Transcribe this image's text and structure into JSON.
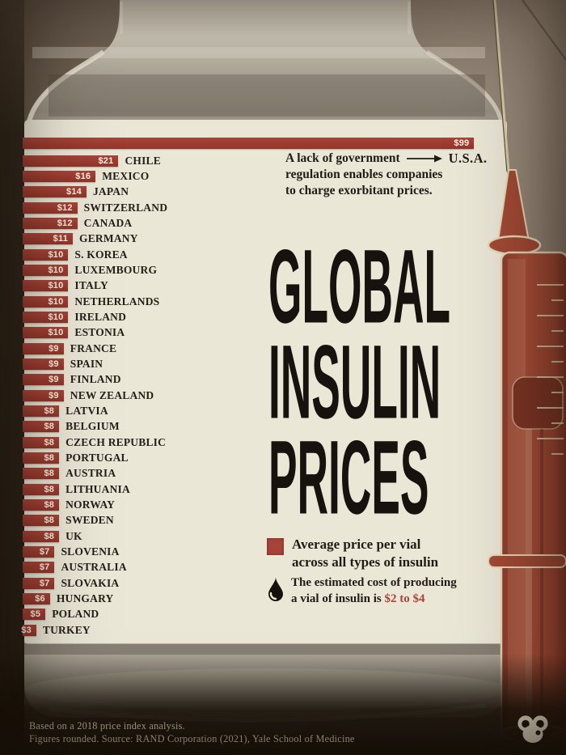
{
  "title": {
    "line1": "GLOBAL",
    "line2": "INSULIN",
    "line3": "PRICES"
  },
  "annotation": {
    "line1": "A lack of government",
    "line2": "regulation enables companies",
    "line3": "to charge exorbitant prices.",
    "target": "U.S.A."
  },
  "legend": {
    "avg": {
      "line1": "Average price per vial",
      "line2": "across all types of insulin"
    },
    "cost": {
      "line1": "The estimated cost of producing",
      "line2_prefix": "a vial of insulin is ",
      "line2_highlight": "$2 to $4"
    }
  },
  "footer": {
    "line1": "Based on a 2018 price index analysis.",
    "line2": "Figures rounded. Source: RAND Corporation (2021), Yale School of Medicine"
  },
  "colors": {
    "bar_red_hi": "#a8453a",
    "bar_red_lo": "#92352a",
    "accent_red": "#a8433a",
    "label_cream": "#ebe7d7",
    "syringe_red": "#a34a36",
    "syringe_outline": "#e6d8b6",
    "ink": "#211b16",
    "footer_text": "#d5caae",
    "logo_cream": "#efe8d4"
  },
  "logo": "bored-panda-logo",
  "chart_data": {
    "type": "bar",
    "orientation": "horizontal",
    "title": "Global Insulin Prices",
    "subtitle": "Average price per vial across all types of insulin (USD)",
    "production_cost_note": "The estimated cost of producing a vial of insulin is $2 to $4",
    "source": "RAND Corporation (2021), Yale School of Medicine",
    "basis": "Based on a 2018 price index analysis. Figures rounded.",
    "xlim": [
      0,
      99
    ],
    "grid": false,
    "categories": [
      "U.S.A.",
      "Chile",
      "Mexico",
      "Japan",
      "Switzerland",
      "Canada",
      "Germany",
      "S. Korea",
      "Luxembourg",
      "Italy",
      "Netherlands",
      "Ireland",
      "Estonia",
      "France",
      "Spain",
      "Finland",
      "New Zealand",
      "Latvia",
      "Belgium",
      "Czech Republic",
      "Portugal",
      "Austria",
      "Lithuania",
      "Norway",
      "Sweden",
      "UK",
      "Slovenia",
      "Australia",
      "Slovakia",
      "Hungary",
      "Poland",
      "Turkey"
    ],
    "values": [
      99,
      21,
      16,
      14,
      12,
      12,
      11,
      10,
      10,
      10,
      10,
      10,
      10,
      9,
      9,
      9,
      9,
      8,
      8,
      8,
      8,
      8,
      8,
      8,
      8,
      8,
      7,
      7,
      7,
      6,
      5,
      3
    ],
    "value_prefix": "$"
  }
}
